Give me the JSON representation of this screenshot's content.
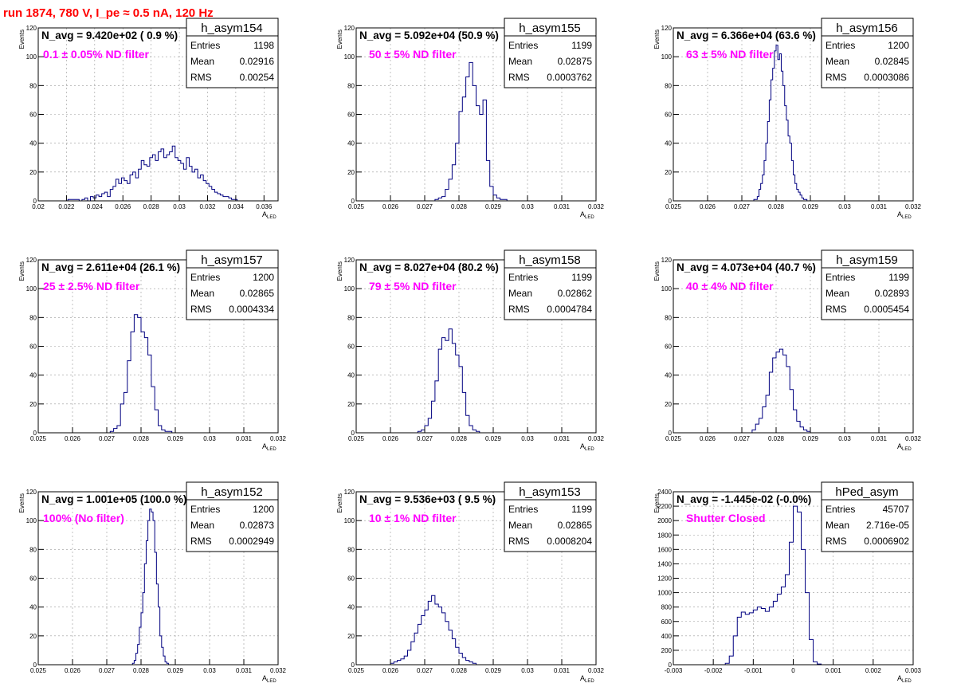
{
  "run_title": "run 1874,   780 V, I_pe ≈ 0.5 nA, 120 Hz",
  "colors": {
    "hist": "#000080",
    "note": "#ff00ff",
    "title": "#ff0000",
    "grid": "#999999"
  },
  "chart_data": [
    {
      "type": "histogram",
      "hist_name": "h_asym154",
      "info": "N_avg = 9.420e+02 ( 0.9 %)",
      "note": "0.1 ± 0.05% ND filter",
      "stats": {
        "Entries": "1198",
        "Mean": "0.02916",
        "RMS": "0.00254"
      },
      "xlabel": "A",
      "xlabel_sub": "LED",
      "ylabel": "Events",
      "xlim": [
        0.02,
        0.037
      ],
      "ylim": [
        0,
        120
      ],
      "xticks": [
        0.02,
        0.022,
        0.024,
        0.026,
        0.028,
        0.03,
        0.032,
        0.034,
        0.036
      ],
      "xtick_labels": [
        "0.02",
        "0.022",
        "0.024",
        "0.026",
        "0.028",
        "0.03",
        "0.032",
        "0.034",
        "0.036"
      ],
      "yticks": [
        0,
        20,
        40,
        60,
        80,
        100,
        120
      ],
      "ytick_labels": [
        "0",
        "20",
        "40",
        "60",
        "80",
        "100",
        "120"
      ],
      "bin_start": 0.0221,
      "bin_width": 0.0002,
      "counts": [
        1,
        1,
        1,
        1,
        0,
        1,
        2,
        0,
        3,
        2,
        4,
        3,
        5,
        6,
        3,
        8,
        10,
        15,
        12,
        16,
        14,
        12,
        18,
        20,
        16,
        22,
        28,
        25,
        24,
        30,
        32,
        28,
        34,
        36,
        30,
        32,
        34,
        38,
        30,
        28,
        26,
        22,
        30,
        24,
        20,
        22,
        16,
        18,
        14,
        12,
        10,
        8,
        6,
        5,
        4,
        3,
        3,
        2,
        1,
        1,
        0,
        0,
        0,
        0
      ]
    },
    {
      "type": "histogram",
      "hist_name": "h_asym155",
      "info": "N_avg = 5.092e+04 (50.9 %)",
      "note": "50 ± 5% ND filter",
      "stats": {
        "Entries": "1199",
        "Mean": "0.02875",
        "RMS": "0.0003762"
      },
      "xlabel": "A",
      "xlabel_sub": "LED",
      "ylabel": "Events",
      "xlim": [
        0.025,
        0.032
      ],
      "ylim": [
        0,
        120
      ],
      "xticks": [
        0.025,
        0.026,
        0.027,
        0.028,
        0.029,
        0.03,
        0.031,
        0.032
      ],
      "xtick_labels": [
        "0.025",
        "0.026",
        "0.027",
        "0.028",
        "0.029",
        "0.03",
        "0.031",
        "0.032"
      ],
      "yticks": [
        0,
        20,
        40,
        60,
        80,
        100,
        120
      ],
      "yticks_labels_ref": "same",
      "ytick_labels": [
        "0",
        "20",
        "40",
        "60",
        "80",
        "100",
        "120"
      ],
      "bin_start": 0.0273,
      "bin_width": 0.0001,
      "counts": [
        1,
        2,
        3,
        8,
        15,
        25,
        40,
        62,
        72,
        86,
        96,
        80,
        66,
        60,
        70,
        28,
        10,
        4,
        2,
        1,
        1
      ]
    },
    {
      "type": "histogram",
      "hist_name": "h_asym156",
      "info": "N_avg = 6.366e+04 (63.6 %)",
      "note": "63 ± 5% ND filter",
      "stats": {
        "Entries": "1200",
        "Mean": "0.02845",
        "RMS": "0.0003086"
      },
      "xlabel": "A",
      "xlabel_sub": "LED",
      "ylabel": "Events",
      "xlim": [
        0.025,
        0.032
      ],
      "ylim": [
        0,
        120
      ],
      "xticks": [
        0.025,
        0.026,
        0.027,
        0.028,
        0.029,
        0.03,
        0.031,
        0.032
      ],
      "xtick_labels": [
        "0.025",
        "0.026",
        "0.027",
        "0.028",
        "0.029",
        "0.03",
        "0.031",
        "0.032"
      ],
      "yticks": [
        0,
        20,
        40,
        60,
        80,
        100,
        120
      ],
      "ytick_labels": [
        "0",
        "20",
        "40",
        "60",
        "80",
        "100",
        "120"
      ],
      "bin_start": 0.02735,
      "bin_width": 5e-05,
      "counts": [
        1,
        1,
        3,
        8,
        12,
        18,
        28,
        40,
        55,
        70,
        84,
        92,
        104,
        108,
        98,
        102,
        90,
        80,
        66,
        56,
        45,
        40,
        28,
        18,
        12,
        8,
        6,
        4,
        2,
        1,
        1
      ]
    },
    {
      "type": "histogram",
      "hist_name": "h_asym157",
      "info": "N_avg = 2.611e+04 (26.1 %)",
      "note": "25 ± 2.5% ND filter",
      "stats": {
        "Entries": "1200",
        "Mean": "0.02865",
        "RMS": "0.0004334"
      },
      "xlabel": "A",
      "xlabel_sub": "LED",
      "ylabel": "Events",
      "xlim": [
        0.025,
        0.032
      ],
      "ylim": [
        0,
        120
      ],
      "xticks": [
        0.025,
        0.026,
        0.027,
        0.028,
        0.029,
        0.03,
        0.031,
        0.032
      ],
      "xtick_labels": [
        "0.025",
        "0.026",
        "0.027",
        "0.028",
        "0.029",
        "0.03",
        "0.031",
        "0.032"
      ],
      "yticks": [
        0,
        20,
        40,
        60,
        80,
        100,
        120
      ],
      "ytick_labels": [
        "0",
        "20",
        "40",
        "60",
        "80",
        "100",
        "120"
      ],
      "bin_start": 0.0271,
      "bin_width": 0.0001,
      "counts": [
        1,
        3,
        5,
        20,
        28,
        50,
        70,
        82,
        80,
        70,
        66,
        54,
        32,
        16,
        5,
        2,
        1,
        1,
        0,
        0
      ]
    },
    {
      "type": "histogram",
      "hist_name": "h_asym158",
      "info": "N_avg = 8.027e+04 (80.2 %)",
      "note": "79 ± 5% ND filter",
      "stats": {
        "Entries": "1199",
        "Mean": "0.02862",
        "RMS": "0.0004784"
      },
      "xlabel": "A",
      "xlabel_sub": "LED",
      "ylabel": "Events",
      "xlim": [
        0.025,
        0.032
      ],
      "ylim": [
        0,
        120
      ],
      "xticks": [
        0.025,
        0.026,
        0.027,
        0.028,
        0.029,
        0.03,
        0.031,
        0.032
      ],
      "xtick_labels": [
        "0.025",
        "0.026",
        "0.027",
        "0.028",
        "0.029",
        "0.03",
        "0.031",
        "0.032"
      ],
      "yticks": [
        0,
        20,
        40,
        60,
        80,
        100,
        120
      ],
      "ytick_labels": [
        "0",
        "20",
        "40",
        "60",
        "80",
        "100",
        "120"
      ],
      "bin_start": 0.0268,
      "bin_width": 0.0001,
      "counts": [
        1,
        2,
        5,
        10,
        22,
        36,
        58,
        66,
        64,
        72,
        62,
        54,
        46,
        28,
        12,
        5,
        2,
        1,
        0,
        0
      ]
    },
    {
      "type": "histogram",
      "hist_name": "h_asym159",
      "info": "N_avg = 4.073e+04 (40.7 %)",
      "note": "40 ± 4% ND filter",
      "stats": {
        "Entries": "1199",
        "Mean": "0.02893",
        "RMS": "0.0005454"
      },
      "xlabel": "A",
      "xlabel_sub": "LED",
      "ylabel": "Events",
      "xlim": [
        0.025,
        0.032
      ],
      "ylim": [
        0,
        120
      ],
      "xticks": [
        0.025,
        0.026,
        0.027,
        0.028,
        0.029,
        0.03,
        0.031,
        0.032
      ],
      "xtick_labels": [
        "0.025",
        "0.026",
        "0.027",
        "0.028",
        "0.029",
        "0.03",
        "0.031",
        "0.032"
      ],
      "yticks": [
        0,
        20,
        40,
        60,
        80,
        100,
        120
      ],
      "ytick_labels": [
        "0",
        "20",
        "40",
        "60",
        "80",
        "100",
        "120"
      ],
      "bin_start": 0.0273,
      "bin_width": 0.0001,
      "counts": [
        2,
        6,
        10,
        18,
        26,
        42,
        52,
        56,
        58,
        54,
        46,
        30,
        16,
        8,
        4,
        2,
        1
      ]
    },
    {
      "type": "histogram",
      "hist_name": "h_asym152",
      "info": "N_avg = 1.001e+05 (100.0 %)",
      "note": "100% (No filter)",
      "stats": {
        "Entries": "1200",
        "Mean": "0.02873",
        "RMS": "0.0002949"
      },
      "xlabel": "A",
      "xlabel_sub": "LED",
      "ylabel": "Events",
      "xlim": [
        0.025,
        0.032
      ],
      "ylim": [
        0,
        120
      ],
      "xticks": [
        0.025,
        0.026,
        0.027,
        0.028,
        0.029,
        0.03,
        0.031,
        0.032
      ],
      "xtick_labels": [
        "0.025",
        "0.026",
        "0.027",
        "0.028",
        "0.029",
        "0.03",
        "0.031",
        "0.032"
      ],
      "yticks": [
        0,
        20,
        40,
        60,
        80,
        100,
        120
      ],
      "ytick_labels": [
        "0",
        "20",
        "40",
        "60",
        "80",
        "100",
        "120"
      ],
      "bin_start": 0.02775,
      "bin_width": 5e-05,
      "counts": [
        1,
        3,
        8,
        14,
        26,
        36,
        50,
        70,
        86,
        100,
        108,
        106,
        100,
        78,
        56,
        40,
        20,
        12,
        6,
        2,
        1
      ]
    },
    {
      "type": "histogram",
      "hist_name": "h_asym153",
      "info": "N_avg = 9.536e+03 ( 9.5 %)",
      "note": "10 ± 1% ND filter",
      "stats": {
        "Entries": "1199",
        "Mean": "0.02865",
        "RMS": "0.0008204"
      },
      "xlabel": "A",
      "xlabel_sub": "LED",
      "ylabel": "Events",
      "xlim": [
        0.025,
        0.032
      ],
      "ylim": [
        0,
        120
      ],
      "xticks": [
        0.025,
        0.026,
        0.027,
        0.028,
        0.029,
        0.03,
        0.031,
        0.032
      ],
      "xtick_labels": [
        "0.025",
        "0.026",
        "0.027",
        "0.028",
        "0.029",
        "0.03",
        "0.031",
        "0.032"
      ],
      "yticks": [
        0,
        20,
        40,
        60,
        80,
        100,
        120
      ],
      "ytick_labels": [
        "0",
        "20",
        "40",
        "60",
        "80",
        "100",
        "120"
      ],
      "bin_start": 0.026,
      "bin_width": 0.0001,
      "counts": [
        1,
        2,
        3,
        4,
        6,
        10,
        16,
        22,
        28,
        34,
        38,
        44,
        48,
        42,
        40,
        36,
        30,
        24,
        18,
        12,
        8,
        5,
        3,
        2,
        1,
        0,
        0,
        0
      ]
    },
    {
      "type": "histogram",
      "hist_name": "hPed_asym",
      "info": "N_avg = -1.445e-02 (-0.0%)",
      "note": "Shutter Closed",
      "stats": {
        "Entries": "45707",
        "Mean": "2.716e-05",
        "RMS": "0.0006902"
      },
      "xlabel": "A",
      "xlabel_sub": "LED",
      "ylabel": "Events",
      "xlim": [
        -0.003,
        0.003
      ],
      "ylim": [
        0,
        2400
      ],
      "xticks": [
        -0.003,
        -0.002,
        -0.001,
        0,
        0.001,
        0.002,
        0.003
      ],
      "xtick_labels": [
        "-0.003",
        "-0.002",
        "-0.001",
        "0",
        "0.001",
        "0.002",
        "0.003"
      ],
      "yticks": [
        0,
        200,
        400,
        600,
        800,
        1000,
        1200,
        1400,
        1600,
        1800,
        2000,
        2200,
        2400
      ],
      "ytick_labels": [
        "0",
        "200",
        "400",
        "600",
        "800",
        "1000",
        "1200",
        "1400",
        "1600",
        "1800",
        "2000",
        "2200",
        "2400"
      ],
      "bin_start": -0.0017,
      "bin_width": 0.0001,
      "counts": [
        20,
        120,
        400,
        660,
        730,
        700,
        720,
        760,
        800,
        780,
        740,
        800,
        880,
        980,
        1080,
        1250,
        1700,
        2200,
        2120,
        1600,
        1000,
        350,
        40,
        10
      ]
    }
  ]
}
